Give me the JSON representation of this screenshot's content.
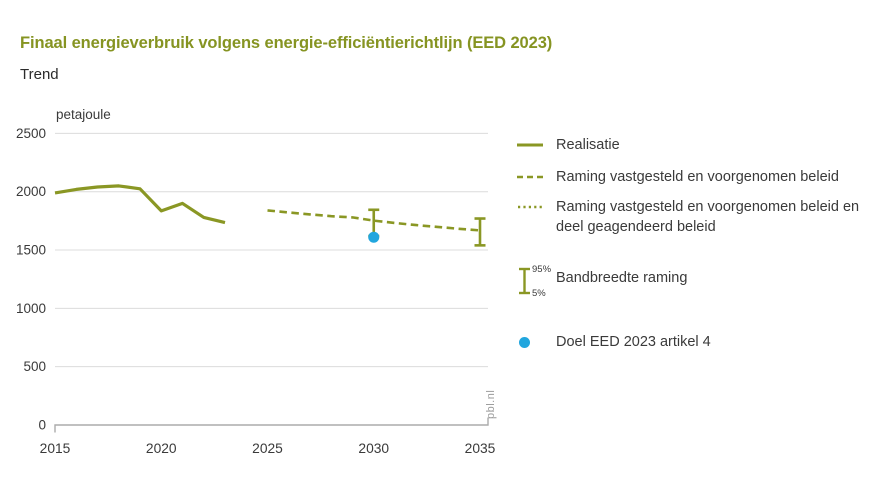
{
  "page": {
    "title": "Finaal energieverbruik volgens energie-efficiëntierichtlijn (EED 2023)",
    "subtitle": "Trend",
    "watermark": "pbl.nl"
  },
  "colors": {
    "accent": "#8a9724",
    "target_blue": "#21a6de",
    "grid": "#dcdcdc",
    "axis": "#ababab",
    "text": "#3a3a3a",
    "muted": "#9b9b9b"
  },
  "legend": {
    "items": [
      {
        "marker": "solid-line",
        "label": "Realisatie"
      },
      {
        "marker": "dashed-line",
        "label": "Raming vastgesteld en voorgenomen beleid"
      },
      {
        "marker": "dotted-line",
        "label": "Raming vastgesteld en voorgenomen beleid en deel geagendeerd beleid"
      },
      {
        "marker": "error-bar",
        "label": "Bandbreedte raming",
        "upper_label": "95%",
        "lower_label": "5%"
      },
      {
        "marker": "dot",
        "label": "Doel EED 2023 artikel 4"
      }
    ]
  },
  "chart_data": {
    "type": "line",
    "title": "Finaal energieverbruik volgens energie-efficiëntierichtlijn (EED 2023)",
    "subtitle": "Trend",
    "ylabel": "petajoule",
    "xlabel": "",
    "ylim": [
      0,
      2500
    ],
    "xlim": [
      2015,
      2035.4
    ],
    "y_ticks": [
      0,
      500,
      1000,
      1500,
      2000,
      2500
    ],
    "x_ticks": [
      2015,
      2020,
      2025,
      2030,
      2035
    ],
    "grid": true,
    "legend_position": "right",
    "series": [
      {
        "name": "Realisatie",
        "style": "solid",
        "x": [
          2015,
          2016,
          2017,
          2018,
          2019,
          2020,
          2021,
          2022,
          2023
        ],
        "values": [
          1990,
          2020,
          2040,
          2050,
          2025,
          1835,
          1900,
          1780,
          1735
        ]
      },
      {
        "name": "Raming vastgesteld en voorgenomen beleid",
        "style": "dashed",
        "x": [
          2025,
          2026,
          2027,
          2028,
          2029,
          2030,
          2031,
          2032,
          2033,
          2034,
          2035
        ],
        "values": [
          1840,
          1822,
          1805,
          1790,
          1780,
          1752,
          1732,
          1714,
          1698,
          1682,
          1668
        ]
      },
      {
        "name": "Raming vastgesteld en voorgenomen beleid en deel geagendeerd beleid",
        "style": "dotted",
        "hidden_in_plot": true,
        "note": "coincides with the dashed series in the plot; only visible in legend",
        "x": [
          2025,
          2026,
          2027,
          2028,
          2029,
          2030,
          2031,
          2032,
          2033,
          2034,
          2035
        ],
        "values": [
          1840,
          1822,
          1805,
          1790,
          1780,
          1752,
          1732,
          1714,
          1698,
          1682,
          1668
        ]
      }
    ],
    "error_bars": [
      {
        "x": 2030,
        "low": 1620,
        "high": 1845,
        "label_low": "5%",
        "label_high": "95%"
      },
      {
        "x": 2035,
        "low": 1540,
        "high": 1770,
        "label_low": "5%",
        "label_high": "95%"
      }
    ],
    "target_point": {
      "x": 2030,
      "value": 1610,
      "label": "Doel EED 2023 artikel 4"
    }
  }
}
